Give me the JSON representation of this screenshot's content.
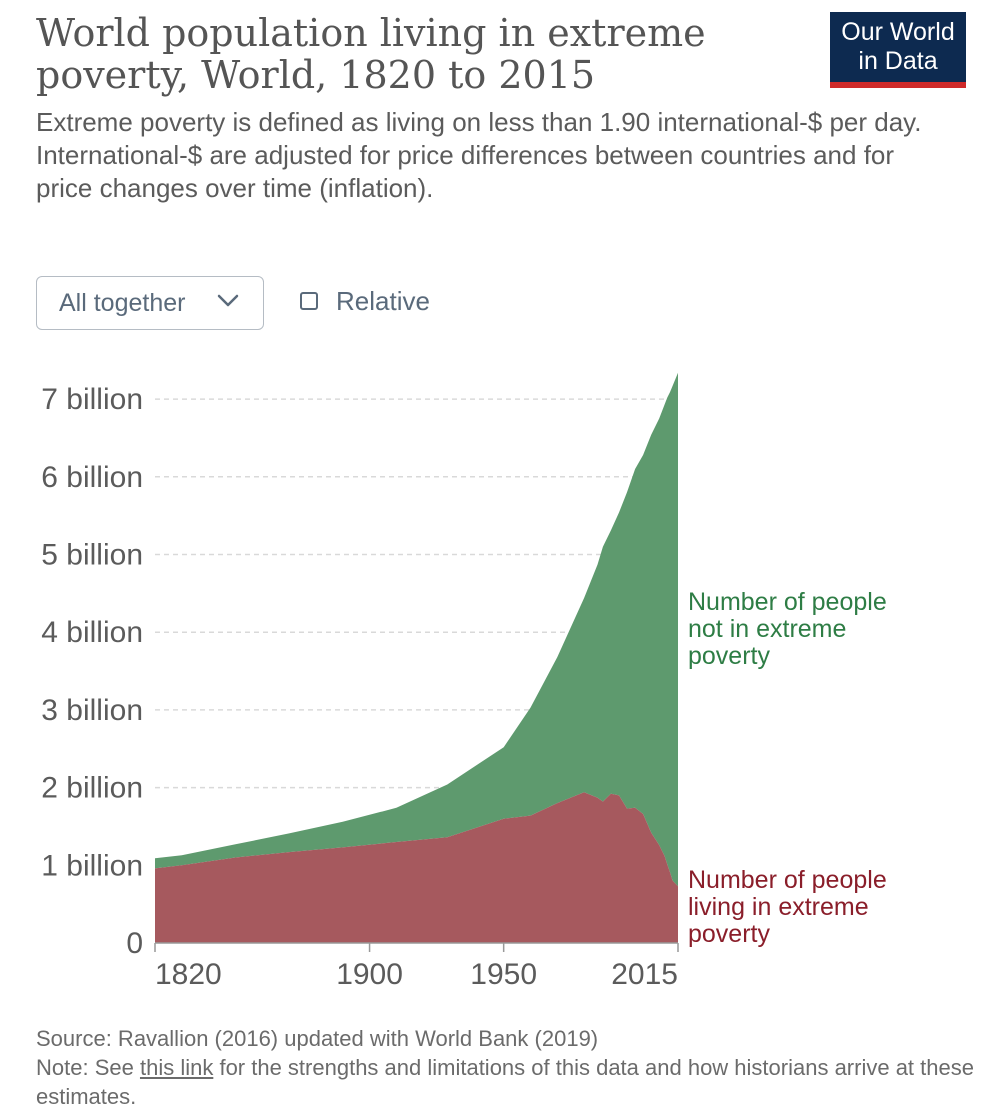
{
  "header": {
    "title": "World population living in extreme poverty, World, 1820 to 2015",
    "subtitle_line1": "Extreme poverty is defined as living on less than 1.90 international-$ per day.",
    "subtitle_line2": "International-$ are adjusted for price differences between countries and for price changes over time (inflation).",
    "logo_line1": "Our World",
    "logo_line2": "in Data"
  },
  "controls": {
    "dropdown_value": "All together",
    "relative_label": "Relative",
    "relative_checked": false
  },
  "footer": {
    "source": "Source: Ravallion (2016) updated with World Bank (2019)",
    "note_prefix": "Note: See",
    "note_link": "this link",
    "note_suffix": "for the strengths and limitations of this data and how historians arrive at these estimates."
  },
  "colors": {
    "not_poverty": "#5e9a6e",
    "poverty": "#a6595e",
    "not_poverty_label": "#2e7d45",
    "poverty_label": "#8a1e2a",
    "logo_bg": "#0d2a50",
    "logo_accent": "#cf2a2a"
  },
  "chart_data": {
    "type": "area",
    "stacked": true,
    "x": [
      1820,
      1830,
      1850,
      1870,
      1890,
      1910,
      1929,
      1950,
      1960,
      1970,
      1980,
      1985,
      1987,
      1990,
      1993,
      1996,
      1999,
      2002,
      2005,
      2008,
      2010,
      2011,
      2012,
      2013,
      2015
    ],
    "series": [
      {
        "name": "Number of people living in extreme poverty",
        "values": [
          0.96,
          1.0,
          1.1,
          1.17,
          1.23,
          1.3,
          1.36,
          1.6,
          1.64,
          1.8,
          1.94,
          1.87,
          1.82,
          1.92,
          1.9,
          1.73,
          1.74,
          1.66,
          1.42,
          1.26,
          1.12,
          1.01,
          0.91,
          0.8,
          0.73
        ]
      },
      {
        "name": "Number of people not in extreme poverty",
        "values": [
          0.13,
          0.13,
          0.17,
          0.24,
          0.33,
          0.44,
          0.68,
          0.92,
          1.39,
          1.88,
          2.5,
          3.0,
          3.28,
          3.39,
          3.64,
          4.07,
          4.36,
          4.62,
          5.12,
          5.49,
          5.81,
          6.01,
          6.18,
          6.37,
          6.61
        ]
      }
    ],
    "y_ticks": [
      {
        "value": 0,
        "label": "0"
      },
      {
        "value": 1,
        "label": "1 billion"
      },
      {
        "value": 2,
        "label": "2 billion"
      },
      {
        "value": 3,
        "label": "3 billion"
      },
      {
        "value": 4,
        "label": "4 billion"
      },
      {
        "value": 5,
        "label": "5 billion"
      },
      {
        "value": 6,
        "label": "6 billion"
      },
      {
        "value": 7,
        "label": "7 billion"
      }
    ],
    "x_ticks": [
      1820,
      1900,
      1950,
      2015
    ],
    "ylim": [
      0,
      7.4
    ],
    "xlim": [
      1820,
      2015
    ],
    "grid": true,
    "labels": {
      "not_poverty": [
        "Number of people",
        "not in extreme",
        "poverty"
      ],
      "poverty": [
        "Number of people",
        "living in extreme",
        "poverty"
      ]
    }
  }
}
